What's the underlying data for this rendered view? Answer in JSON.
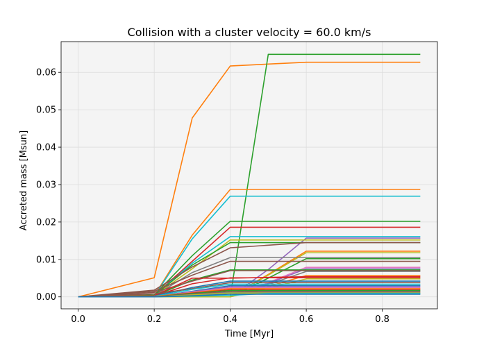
{
  "chart_data": {
    "type": "line",
    "title": "Collision with a cluster velocity = 60.0 km/s",
    "xlabel": "Time [Myr]",
    "ylabel": "Accreted mass [Msun]",
    "xlim": [
      -0.045,
      0.945
    ],
    "ylim": [
      -0.0032,
      0.0682
    ],
    "xticks": [
      0.0,
      0.2,
      0.4,
      0.6,
      0.8
    ],
    "xtick_labels": [
      "0.0",
      "0.2",
      "0.4",
      "0.6",
      "0.8"
    ],
    "yticks": [
      0.0,
      0.01,
      0.02,
      0.03,
      0.04,
      0.05,
      0.06
    ],
    "ytick_labels": [
      "0.00",
      "0.01",
      "0.02",
      "0.03",
      "0.04",
      "0.05",
      "0.06"
    ],
    "grid": true,
    "legend": false,
    "background_color": "#f4f4f4",
    "x": [
      0.0,
      0.2,
      0.3,
      0.4,
      0.5,
      0.6,
      0.7,
      0.8,
      0.9
    ],
    "series": [
      {
        "color": "#ff7f0e",
        "values": [
          0,
          0.0051,
          0.0478,
          0.0617,
          0.0622,
          0.0627,
          0.0627,
          0.0627,
          0.0627
        ]
      },
      {
        "color": "#2ca02c",
        "values": [
          0,
          0,
          0,
          0,
          0.0648,
          0.0648,
          0.0648,
          0.0648,
          0.0648
        ]
      },
      {
        "color": "#ff7f0e",
        "values": [
          0,
          0.0003,
          0.0165,
          0.0287,
          0.0287,
          0.0287,
          0.0287,
          0.0287,
          0.0287
        ]
      },
      {
        "color": "#17becf",
        "values": [
          0,
          0.0002,
          0.0155,
          0.0269,
          0.0269,
          0.0269,
          0.0269,
          0.0269,
          0.0269
        ]
      },
      {
        "color": "#2ca02c",
        "values": [
          0,
          0.0005,
          0.011,
          0.0202,
          0.0202,
          0.0202,
          0.0202,
          0.0202,
          0.0202
        ]
      },
      {
        "color": "#d62728",
        "values": [
          0,
          0.0004,
          0.0095,
          0.0186,
          0.0186,
          0.0186,
          0.0186,
          0.0186,
          0.0186
        ]
      },
      {
        "color": "#17becf",
        "values": [
          0,
          0.0003,
          0.009,
          0.0161,
          0.0161,
          0.0161,
          0.0161,
          0.0161,
          0.0161
        ]
      },
      {
        "color": "#9467bd",
        "values": [
          0,
          0,
          0,
          0,
          0.0073,
          0.0157,
          0.0157,
          0.0157,
          0.0157
        ]
      },
      {
        "color": "#bcbd22",
        "values": [
          0,
          0.0003,
          0.0075,
          0.0152,
          0.0152,
          0.0152,
          0.0152,
          0.0152,
          0.0152
        ]
      },
      {
        "color": "#2ca02c",
        "values": [
          0,
          0.0004,
          0.0085,
          0.0145,
          0.0145,
          0.0145,
          0.0145,
          0.0145,
          0.0145
        ]
      },
      {
        "color": "#8c564b",
        "values": [
          0,
          0.0018,
          0.008,
          0.0131,
          0.0138,
          0.0145,
          0.0145,
          0.0145,
          0.0145
        ]
      },
      {
        "color": "#ff7f0e",
        "values": [
          0,
          0,
          0,
          0,
          0.006,
          0.0122,
          0.0122,
          0.0122,
          0.0122
        ]
      },
      {
        "color": "#bcbd22",
        "values": [
          0,
          0,
          0,
          0,
          0.0058,
          0.0118,
          0.0118,
          0.0118,
          0.0118
        ]
      },
      {
        "color": "#7f7f7f",
        "values": [
          0,
          0.0003,
          0.0065,
          0.0105,
          0.0105,
          0.0105,
          0.0105,
          0.0105,
          0.0105
        ]
      },
      {
        "color": "#2ca02c",
        "values": [
          0,
          0,
          0,
          0,
          0.005,
          0.0102,
          0.0102,
          0.0102,
          0.0102
        ]
      },
      {
        "color": "#8c564b",
        "values": [
          0,
          0.0015,
          0.0058,
          0.0095,
          0.0095,
          0.0095,
          0.0095,
          0.0095,
          0.0095
        ]
      },
      {
        "color": "#e377c2",
        "values": [
          0,
          0,
          0,
          0,
          0.0038,
          0.0079,
          0.0079,
          0.0079,
          0.0079
        ]
      },
      {
        "color": "#9467bd",
        "values": [
          0,
          0,
          0,
          0,
          0.0036,
          0.0075,
          0.0075,
          0.0075,
          0.0075
        ]
      },
      {
        "color": "#2ca02c",
        "values": [
          0,
          0.0002,
          0.0045,
          0.0072,
          0.0072,
          0.0072,
          0.0072,
          0.0072,
          0.0072
        ]
      },
      {
        "color": "#8c564b",
        "values": [
          0,
          0.0012,
          0.0042,
          0.007,
          0.007,
          0.007,
          0.007,
          0.007,
          0.007
        ]
      },
      {
        "color": "#7f7f7f",
        "values": [
          0,
          0,
          0,
          0,
          0.0033,
          0.0068,
          0.0068,
          0.0068,
          0.0068
        ]
      },
      {
        "color": "#ff7f0e",
        "values": [
          0,
          0,
          0,
          0,
          0.0028,
          0.0057,
          0.0057,
          0.0057,
          0.0057
        ]
      },
      {
        "color": "#d62728",
        "values": [
          0,
          0.0003,
          0.005,
          0.005,
          0.0052,
          0.0054,
          0.0054,
          0.0054,
          0.0054
        ]
      },
      {
        "color": "#d62728",
        "values": [
          0,
          0.0002,
          0.0035,
          0.0051,
          0.0051,
          0.0051,
          0.0051,
          0.0051,
          0.0051
        ]
      },
      {
        "color": "#bcbd22",
        "values": [
          0,
          0,
          0,
          0,
          0.0024,
          0.0048,
          0.0048,
          0.0048,
          0.0048
        ]
      },
      {
        "color": "#1f77b4",
        "values": [
          0,
          0.0002,
          0.0025,
          0.0042,
          0.0042,
          0.0042,
          0.0042,
          0.0042,
          0.0042
        ]
      },
      {
        "color": "#8c564b",
        "values": [
          0,
          0.0008,
          0.0022,
          0.0038,
          0.0038,
          0.0038,
          0.0038,
          0.0038,
          0.0038
        ]
      },
      {
        "color": "#17becf",
        "values": [
          0,
          0.0001,
          0.002,
          0.0034,
          0.0034,
          0.0034,
          0.0034,
          0.0034,
          0.0034
        ]
      },
      {
        "color": "#1f77b4",
        "values": [
          0,
          0,
          0.0015,
          0.003,
          0.003,
          0.003,
          0.003,
          0.003,
          0.003
        ]
      },
      {
        "color": "#9467bd",
        "values": [
          0,
          0,
          0.0014,
          0.0027,
          0.0027,
          0.0027,
          0.0027,
          0.0027,
          0.0027
        ]
      },
      {
        "color": "#e377c2",
        "values": [
          0,
          0,
          0.0012,
          0.0024,
          0.0024,
          0.0024,
          0.0024,
          0.0024,
          0.0024
        ]
      },
      {
        "color": "#ff7f0e",
        "values": [
          0,
          0.0001,
          0.0011,
          0.0022,
          0.0022,
          0.0022,
          0.0022,
          0.0022,
          0.0022
        ]
      },
      {
        "color": "#d62728",
        "values": [
          0,
          0,
          0.001,
          0.0019,
          0.0019,
          0.0019,
          0.0019,
          0.0019,
          0.0019
        ]
      },
      {
        "color": "#2ca02c",
        "values": [
          0,
          0,
          0.0009,
          0.0017,
          0.0017,
          0.0017,
          0.0017,
          0.0017,
          0.0017
        ]
      },
      {
        "color": "#8c564b",
        "values": [
          0,
          0,
          0.0007,
          0.0014,
          0.0014,
          0.0014,
          0.0014,
          0.0014,
          0.0014
        ]
      },
      {
        "color": "#7f7f7f",
        "values": [
          0,
          0,
          0.0006,
          0.0012,
          0.0012,
          0.0012,
          0.0012,
          0.0012,
          0.0012
        ]
      },
      {
        "color": "#bcbd22",
        "values": [
          0,
          0,
          0.0005,
          0.001,
          0.001,
          0.001,
          0.001,
          0.001,
          0.001
        ]
      },
      {
        "color": "#17becf",
        "values": [
          0,
          0,
          0.0002,
          0.0004,
          0.0009,
          0.0009,
          0.0009,
          0.0009,
          0.0009
        ]
      },
      {
        "color": "#1f77b4",
        "values": [
          0,
          0,
          0.0003,
          0.0007,
          0.0007,
          0.0007,
          0.0007,
          0.0007,
          0.0007
        ]
      }
    ]
  }
}
